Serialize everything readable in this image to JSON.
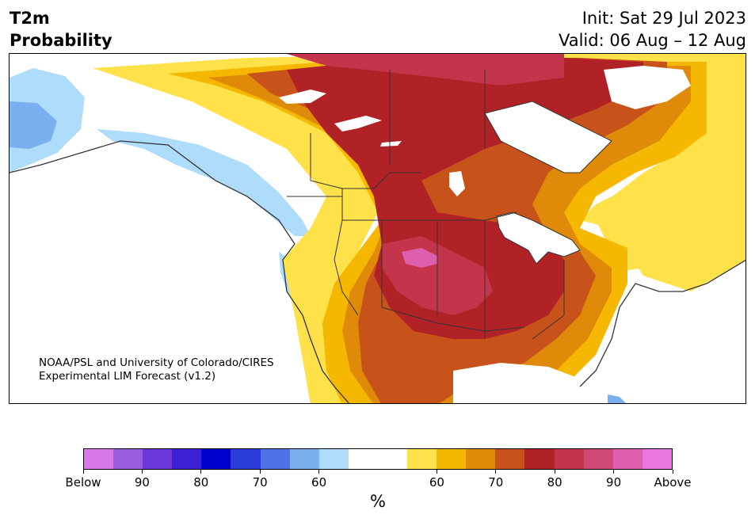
{
  "header": {
    "variable": "T2m",
    "quantity": "Probability",
    "init": "Init: Sat 29 Jul 2023",
    "valid": "Valid: 06 Aug – 12 Aug"
  },
  "credit": {
    "line1": "NOAA/PSL and University of Colorado/CIRES",
    "line2": "Experimental LIM Forecast (v1.2)"
  },
  "colorbar": {
    "unit": "%",
    "colors": [
      "#d67ae9",
      "#9a5de0",
      "#6a38d8",
      "#3e1fd6",
      "#0000cc",
      "#2a3dd8",
      "#4f72e6",
      "#7aaff0",
      "#aedcfb",
      "#ffffff",
      "#ffffff",
      "#ffe14a",
      "#f5b700",
      "#e08a0a",
      "#c8531a",
      "#b12226",
      "#c4344a",
      "#d04a78",
      "#dd5fae",
      "#ea77de"
    ],
    "ticks": [
      {
        "label": "Below",
        "index": 0
      },
      {
        "label": "90",
        "index": 2
      },
      {
        "label": "80",
        "index": 4
      },
      {
        "label": "70",
        "index": 6
      },
      {
        "label": "60",
        "index": 8
      },
      {
        "label": "60",
        "index": 12
      },
      {
        "label": "70",
        "index": 14
      },
      {
        "label": "80",
        "index": 16
      },
      {
        "label": "90",
        "index": 18
      },
      {
        "label": "Above",
        "index": 20
      }
    ]
  },
  "map": {
    "colors": {
      "blue_light": "#aedcfb",
      "blue_mid": "#7aaff0",
      "yellow": "#ffe14a",
      "gold": "#f5b700",
      "orange": "#e08a0a",
      "dark_orange": "#c8531a",
      "red": "#b12226",
      "crimson": "#c4344a",
      "rose": "#d04a78",
      "pink": "#dd5fae",
      "outline": "#333333"
    }
  }
}
